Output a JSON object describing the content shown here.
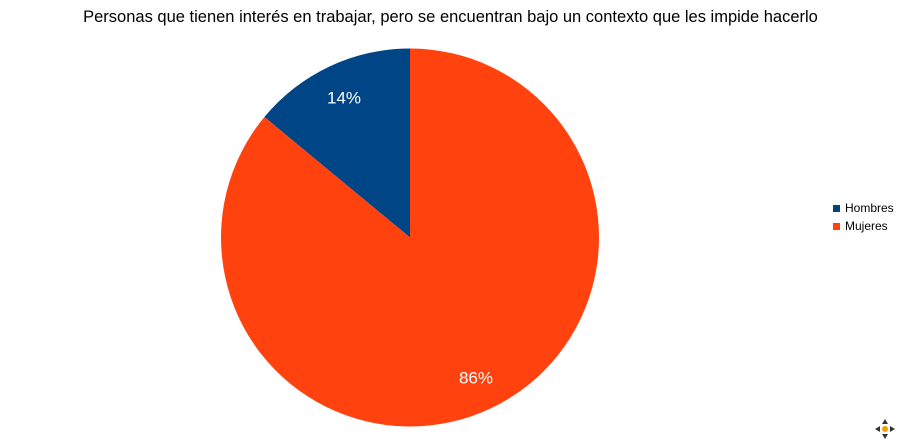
{
  "colors": {
    "Hombres": "#004586",
    "Mujeres": "#ff420e"
  },
  "chart_data": {
    "type": "pie",
    "title": "Personas que tienen interés en trabajar, pero se encuentran bajo un contexto que les impide hacerlo",
    "categories": [
      "Hombres",
      "Mujeres"
    ],
    "values": [
      14,
      86
    ],
    "labels": [
      "14%",
      "86%"
    ],
    "legend_position": "right",
    "start_angle": "12 o'clock, counter-clockwise"
  },
  "icons": {
    "move_handle": "move-arrows-icon"
  }
}
